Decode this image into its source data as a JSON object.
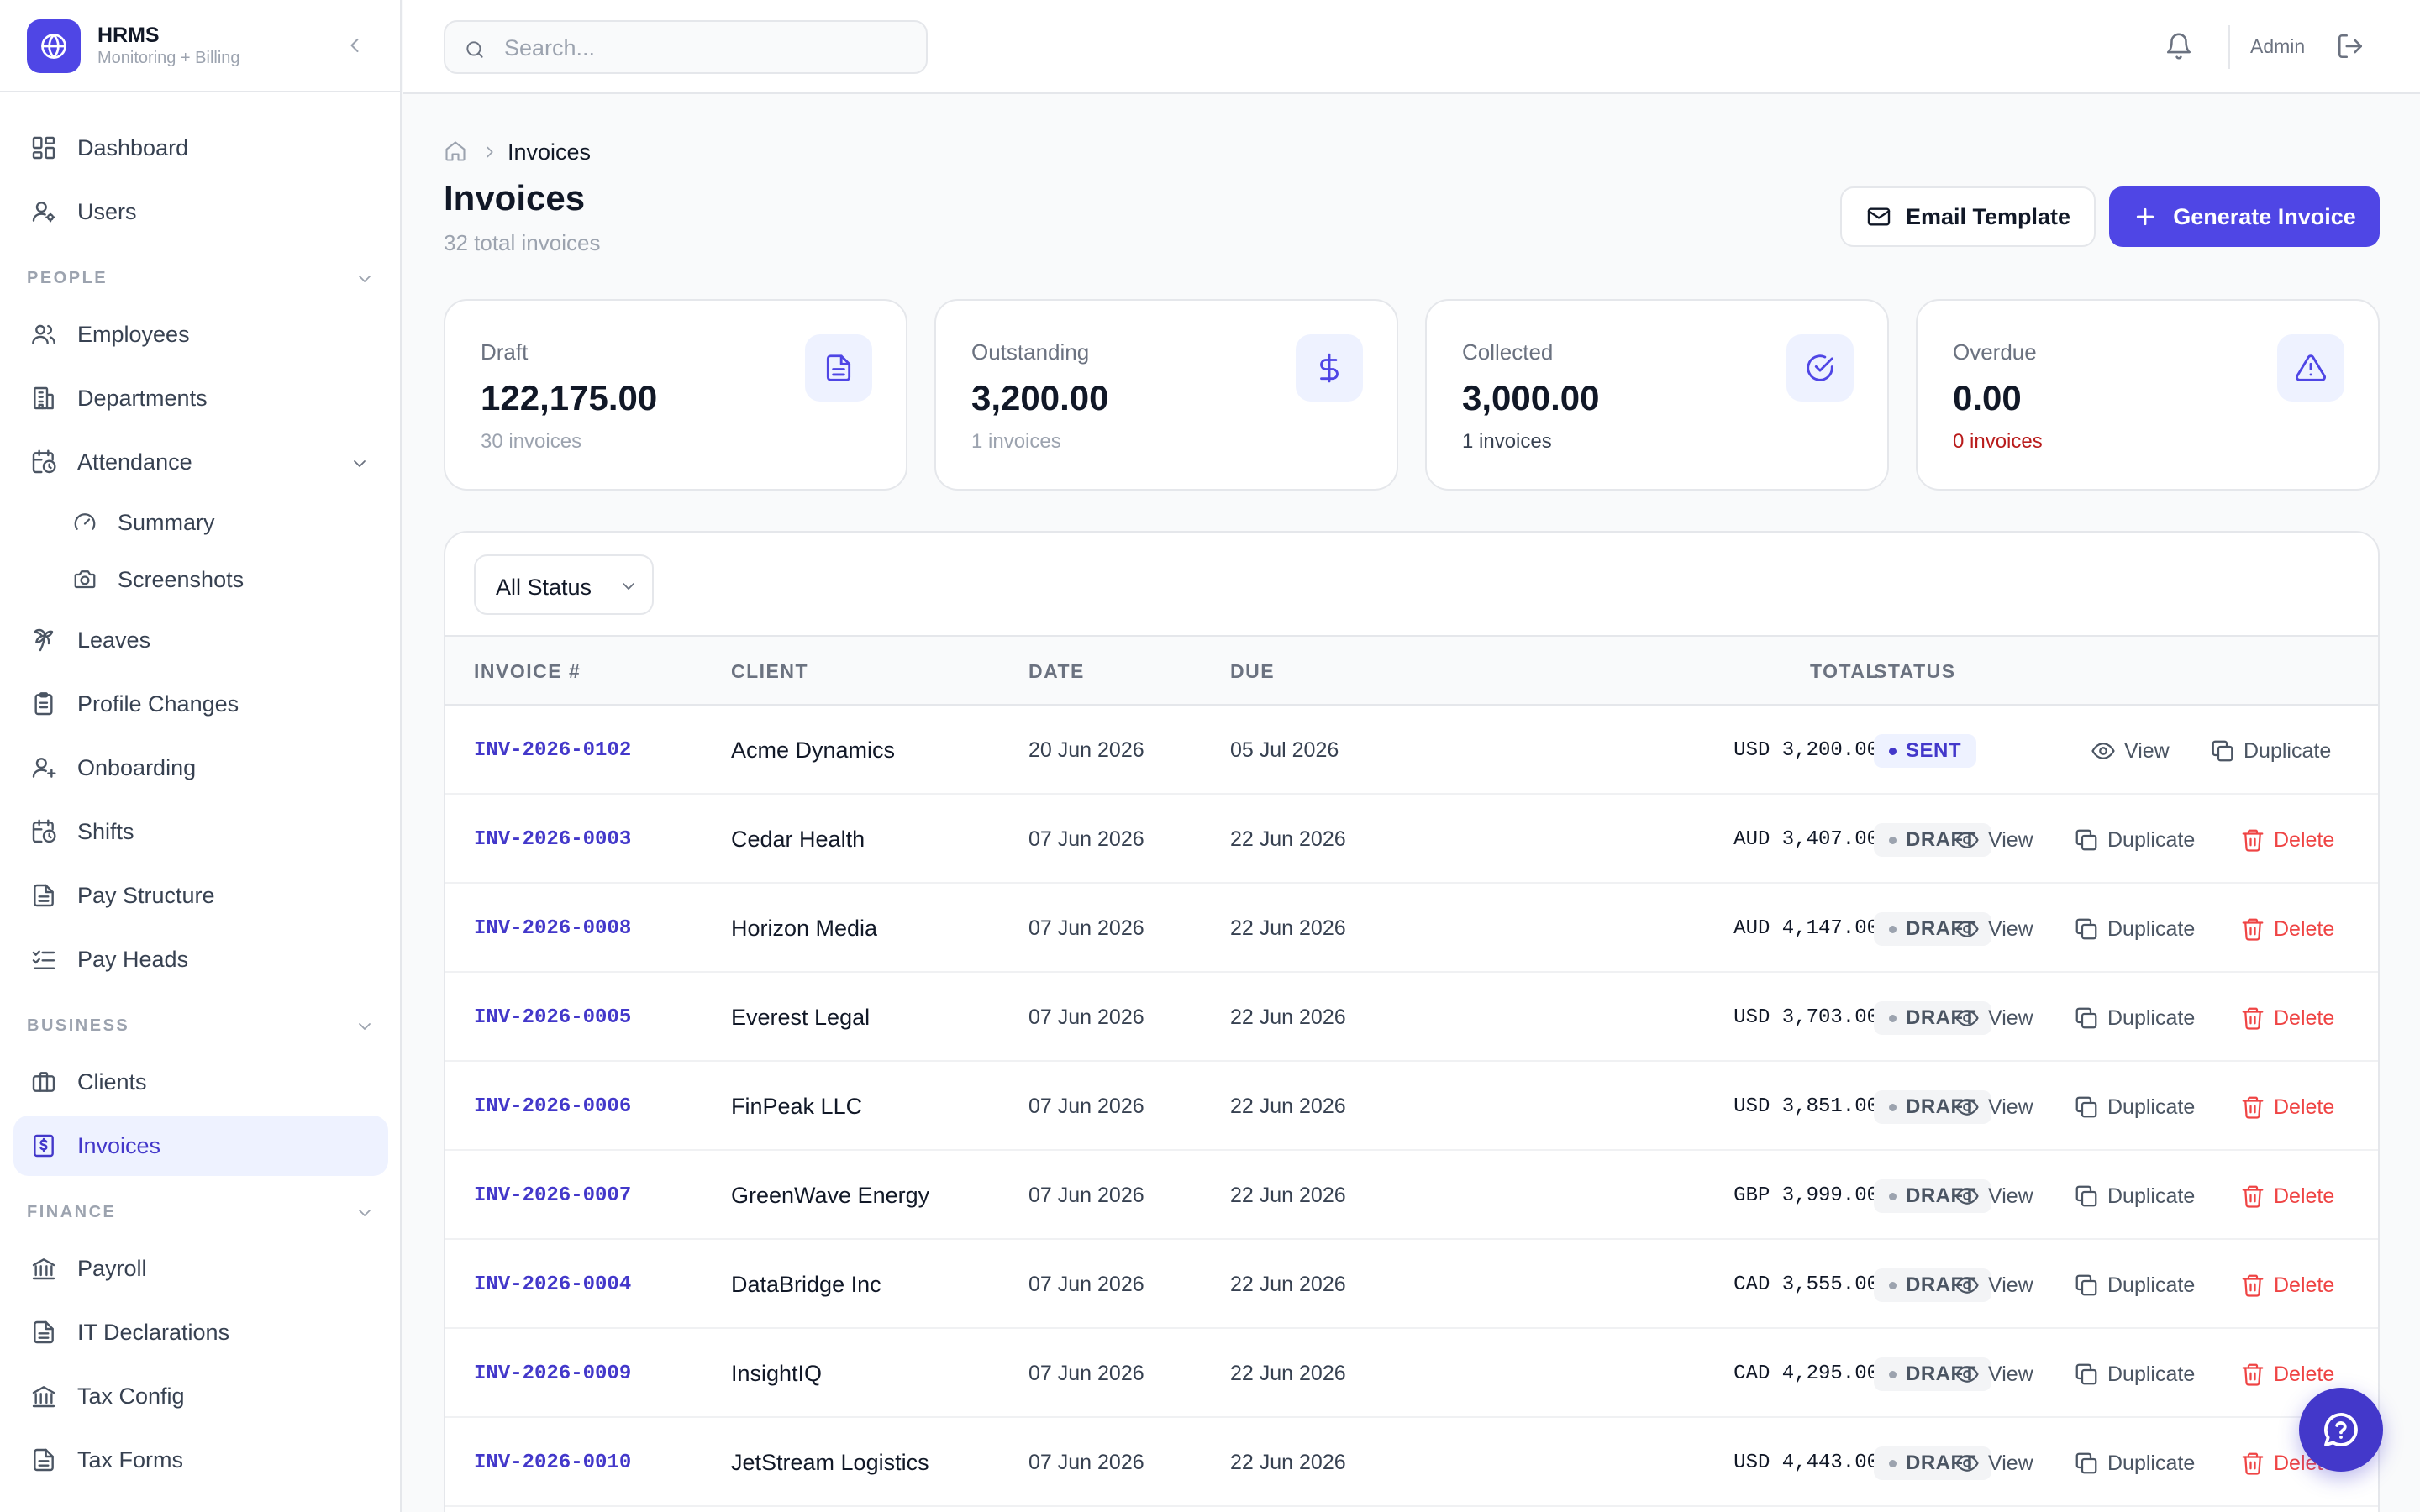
{
  "brand": {
    "title": "HRMS",
    "subtitle": "Monitoring + Billing"
  },
  "sidebar": {
    "items": [
      {
        "label": "Dashboard",
        "icon": "dashboard-icon"
      },
      {
        "label": "Users",
        "icon": "user-cog-icon"
      }
    ],
    "sections": [
      {
        "label": "PEOPLE"
      },
      {
        "label": "BUSINESS"
      },
      {
        "label": "FINANCE"
      }
    ],
    "people": [
      {
        "label": "Employees",
        "icon": "users-icon"
      },
      {
        "label": "Departments",
        "icon": "building-icon"
      },
      {
        "label": "Attendance",
        "icon": "calendar-clock-icon"
      },
      {
        "label": "Summary",
        "icon": "gauge-icon"
      },
      {
        "label": "Screenshots",
        "icon": "camera-icon"
      },
      {
        "label": "Leaves",
        "icon": "palm-tree-icon"
      },
      {
        "label": "Profile Changes",
        "icon": "clipboard-icon"
      },
      {
        "label": "Onboarding",
        "icon": "user-plus-icon"
      },
      {
        "label": "Shifts",
        "icon": "calendar-clock-icon"
      },
      {
        "label": "Pay Structure",
        "icon": "file-text-icon"
      },
      {
        "label": "Pay Heads",
        "icon": "list-checks-icon"
      }
    ],
    "business": [
      {
        "label": "Clients",
        "icon": "briefcase-icon"
      },
      {
        "label": "Invoices",
        "icon": "invoice-dollar-icon"
      }
    ],
    "finance": [
      {
        "label": "Payroll",
        "icon": "bank-icon"
      },
      {
        "label": "IT Declarations",
        "icon": "file-text-icon"
      },
      {
        "label": "Tax Config",
        "icon": "bank-icon"
      },
      {
        "label": "Tax Forms",
        "icon": "file-text-icon"
      }
    ]
  },
  "topbar": {
    "search_placeholder": "Search...",
    "user": "Admin"
  },
  "breadcrumb": {
    "current": "Invoices"
  },
  "page": {
    "title": "Invoices",
    "subtitle": "32 total invoices",
    "email_template_label": "Email Template",
    "generate_label": "Generate Invoice"
  },
  "stats": [
    {
      "label": "Draft",
      "value": "122,175.00",
      "count": "30 invoices",
      "icon": "file-icon"
    },
    {
      "label": "Outstanding",
      "value": "3,200.00",
      "count": "1 invoices",
      "icon": "dollar-icon"
    },
    {
      "label": "Collected",
      "value": "3,000.00",
      "count": "1 invoices",
      "icon": "check-circle-icon"
    },
    {
      "label": "Overdue",
      "value": "0.00",
      "count": "0 invoices",
      "icon": "alert-triangle-icon"
    }
  ],
  "filter": {
    "selected": "All Status"
  },
  "table": {
    "headers": {
      "invoice": "INVOICE #",
      "client": "CLIENT",
      "date": "DATE",
      "due": "DUE",
      "total": "TOTAL",
      "status": "STATUS"
    },
    "actions": {
      "view": "View",
      "duplicate": "Duplicate",
      "delete": "Delete"
    },
    "rows": [
      {
        "invoice": "INV-2026-0102",
        "client": "Acme Dynamics",
        "date": "20 Jun 2026",
        "due": "05 Jul 2026",
        "total": "USD 3,200.00",
        "status": "SENT"
      },
      {
        "invoice": "INV-2026-0003",
        "client": "Cedar Health",
        "date": "07 Jun 2026",
        "due": "22 Jun 2026",
        "total": "AUD 3,407.00",
        "status": "DRAFT"
      },
      {
        "invoice": "INV-2026-0008",
        "client": "Horizon Media",
        "date": "07 Jun 2026",
        "due": "22 Jun 2026",
        "total": "AUD 4,147.00",
        "status": "DRAFT"
      },
      {
        "invoice": "INV-2026-0005",
        "client": "Everest Legal",
        "date": "07 Jun 2026",
        "due": "22 Jun 2026",
        "total": "USD 3,703.00",
        "status": "DRAFT"
      },
      {
        "invoice": "INV-2026-0006",
        "client": "FinPeak LLC",
        "date": "07 Jun 2026",
        "due": "22 Jun 2026",
        "total": "USD 3,851.00",
        "status": "DRAFT"
      },
      {
        "invoice": "INV-2026-0007",
        "client": "GreenWave Energy",
        "date": "07 Jun 2026",
        "due": "22 Jun 2026",
        "total": "GBP 3,999.00",
        "status": "DRAFT"
      },
      {
        "invoice": "INV-2026-0004",
        "client": "DataBridge Inc",
        "date": "07 Jun 2026",
        "due": "22 Jun 2026",
        "total": "CAD 3,555.00",
        "status": "DRAFT"
      },
      {
        "invoice": "INV-2026-0009",
        "client": "InsightIQ",
        "date": "07 Jun 2026",
        "due": "22 Jun 2026",
        "total": "CAD 4,295.00",
        "status": "DRAFT"
      },
      {
        "invoice": "INV-2026-0010",
        "client": "JetStream Logistics",
        "date": "07 Jun 2026",
        "due": "22 Jun 2026",
        "total": "USD 4,443.00",
        "status": "DRAFT"
      }
    ]
  },
  "colors": {
    "accent": "#4f46e5",
    "accent_dark": "#4338ca",
    "danger": "#ef4444",
    "overdue": "#b91c1c"
  }
}
